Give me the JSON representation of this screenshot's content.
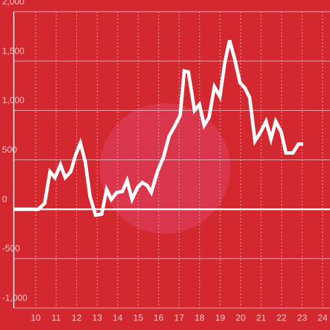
{
  "chart_data": {
    "type": "line",
    "x": [
      8.93,
      10.13,
      10.44,
      10.7,
      10.94,
      11.21,
      11.44,
      11.71,
      11.95,
      12.18,
      12.42,
      12.65,
      12.92,
      13.22,
      13.46,
      13.69,
      13.96,
      14.23,
      14.46,
      14.7,
      14.97,
      15.2,
      15.44,
      15.64,
      15.94,
      16.24,
      16.51,
      16.78,
      17.05,
      17.25,
      17.45,
      17.75,
      17.99,
      18.22,
      18.46,
      18.72,
      18.99,
      19.23,
      19.46,
      19.7,
      19.97,
      20.2,
      20.44,
      20.7,
      20.97,
      21.24,
      21.48,
      21.71,
      21.98,
      22.21,
      22.55,
      22.82,
      23.05
    ],
    "series": [
      {
        "color": "#ffffff",
        "values": [
          0,
          0,
          60,
          380,
          320,
          450,
          320,
          380,
          550,
          670,
          480,
          130,
          -60,
          -50,
          200,
          100,
          170,
          180,
          290,
          100,
          220,
          270,
          240,
          170,
          380,
          530,
          740,
          840,
          950,
          1400,
          1390,
          1000,
          1060,
          850,
          930,
          1240,
          1140,
          1490,
          1710,
          1530,
          1280,
          1230,
          1130,
          690,
          780,
          890,
          710,
          890,
          780,
          570,
          570,
          660,
          660
        ]
      }
    ],
    "xlim": [
      8.93,
      24.36
    ],
    "xticks": [
      10,
      11,
      12,
      13,
      14,
      15,
      16,
      17,
      18,
      19,
      20,
      21,
      22,
      23,
      24
    ],
    "ylim": [
      -1000,
      2000
    ],
    "yticks": [
      {
        "value": -1000,
        "label": "-1,000"
      },
      -500,
      0,
      500,
      {
        "value": 1000,
        "label": "1,000"
      },
      {
        "value": 1500,
        "label": "1,500"
      },
      {
        "value": 2000,
        "label": "2,000"
      }
    ],
    "grid": true
  }
}
